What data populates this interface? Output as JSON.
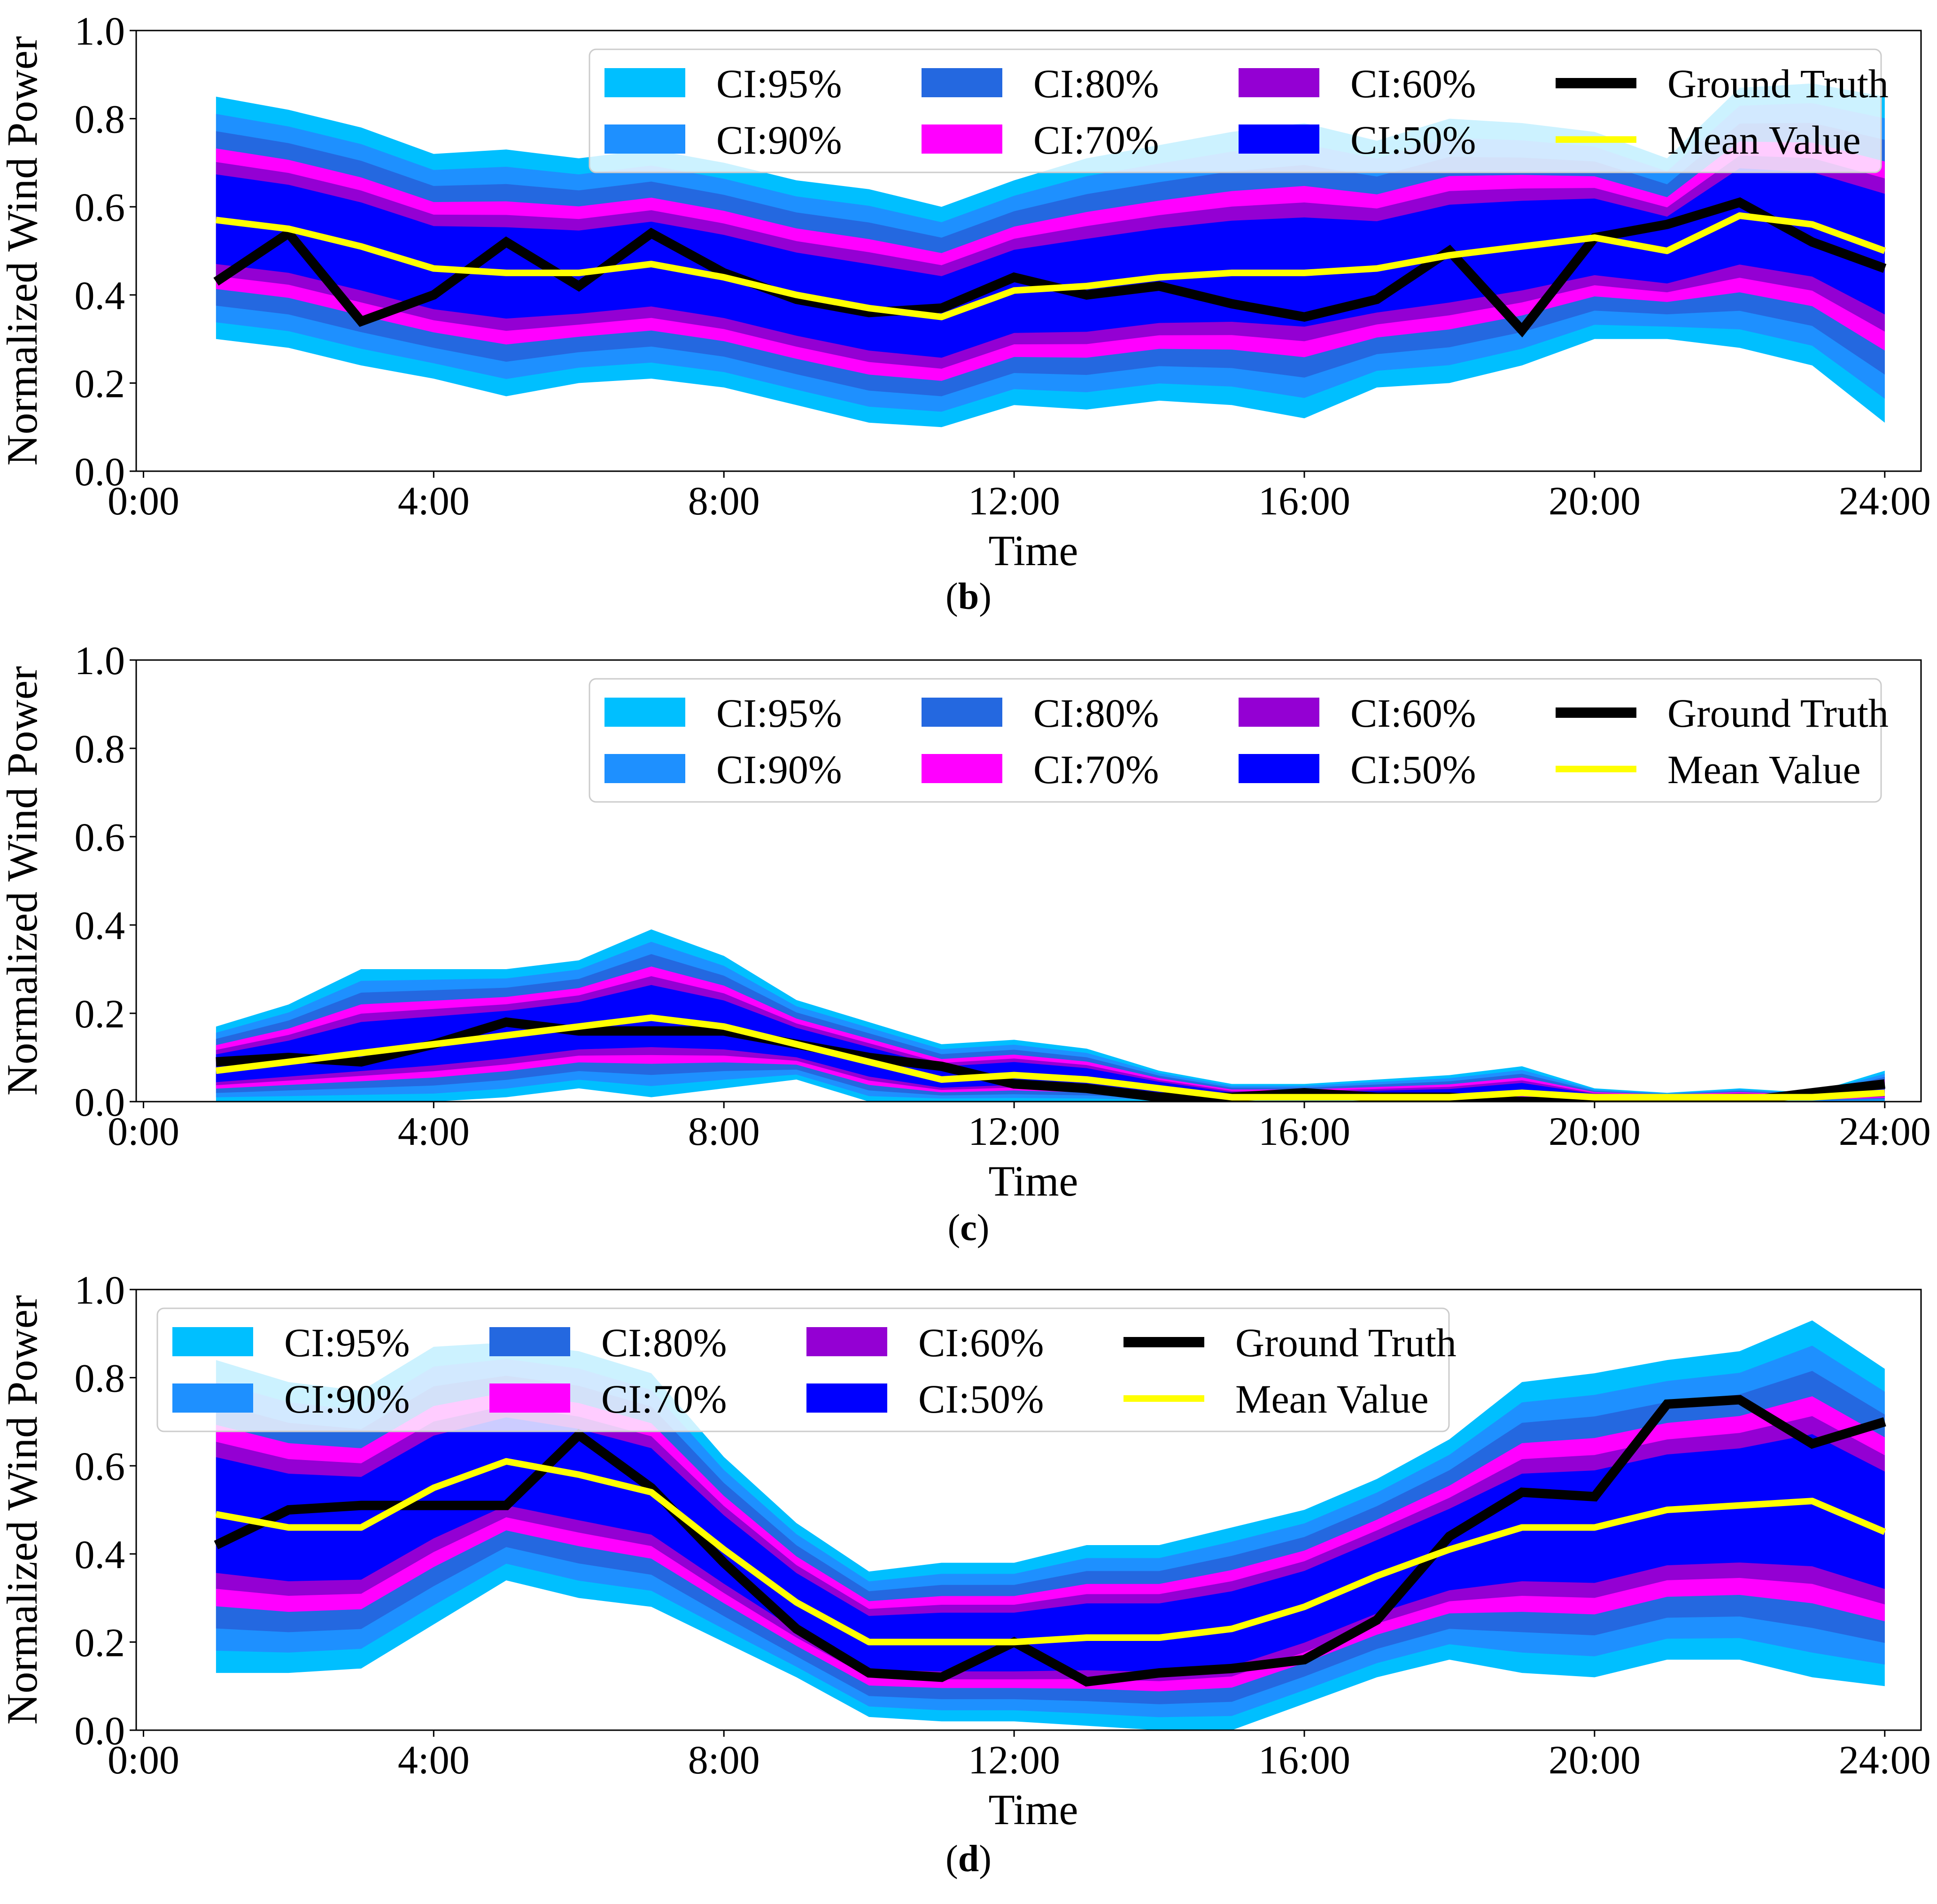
{
  "colors": {
    "ci95": "#00BFFF",
    "ci90": "#1E90FF",
    "ci80": "#2468E0",
    "ci70": "#FF00FF",
    "ci60": "#9400D3",
    "ci50": "#0000FF",
    "ground_truth": "#000000",
    "mean": "#FFFF00"
  },
  "chart_data": [
    {
      "type": "area",
      "panel_label": "b",
      "xlabel": "Time",
      "ylabel": "Normalized Wind Power",
      "ylim": [
        0,
        1
      ],
      "xlim": [
        -0.1,
        24.5
      ],
      "xticks": [
        0,
        4,
        8,
        12,
        16,
        20,
        24
      ],
      "xtick_labels": [
        "0:00",
        "4:00",
        "8:00",
        "12:00",
        "16:00",
        "20:00",
        "24:00"
      ],
      "yticks": [
        0,
        0.2,
        0.4,
        0.6,
        0.8,
        1.0
      ],
      "ytick_labels": [
        "0.0",
        "0.2",
        "0.4",
        "0.6",
        "0.8",
        "1.0"
      ],
      "legend_position": "top-right",
      "legend": [
        "CI:95%",
        "CI:90%",
        "CI:80%",
        "CI:70%",
        "CI:60%",
        "CI:50%",
        "Ground Truth",
        "Mean Value"
      ],
      "x": [
        1,
        2,
        3,
        4,
        5,
        6,
        7,
        8,
        9,
        10,
        11,
        12,
        13,
        14,
        15,
        16,
        17,
        18,
        19,
        20,
        21,
        22,
        23,
        24
      ],
      "mean": [
        0.57,
        0.55,
        0.51,
        0.46,
        0.45,
        0.45,
        0.47,
        0.44,
        0.4,
        0.37,
        0.35,
        0.41,
        0.42,
        0.44,
        0.45,
        0.45,
        0.46,
        0.49,
        0.51,
        0.53,
        0.5,
        0.58,
        0.56,
        0.5
      ],
      "ground_truth": [
        0.43,
        0.54,
        0.34,
        0.4,
        0.52,
        0.42,
        0.54,
        0.45,
        0.39,
        0.36,
        0.37,
        0.44,
        0.4,
        0.42,
        0.38,
        0.35,
        0.39,
        0.5,
        0.32,
        0.53,
        0.56,
        0.61,
        0.52,
        0.46
      ],
      "upper": [
        0.85,
        0.82,
        0.78,
        0.72,
        0.73,
        0.71,
        0.73,
        0.7,
        0.66,
        0.64,
        0.6,
        0.66,
        0.71,
        0.74,
        0.77,
        0.79,
        0.75,
        0.8,
        0.79,
        0.77,
        0.71,
        0.87,
        0.88,
        0.85
      ],
      "lower": [
        0.3,
        0.28,
        0.24,
        0.21,
        0.17,
        0.2,
        0.21,
        0.19,
        0.15,
        0.11,
        0.1,
        0.15,
        0.14,
        0.16,
        0.15,
        0.12,
        0.19,
        0.2,
        0.24,
        0.3,
        0.3,
        0.28,
        0.24,
        0.11
      ]
    },
    {
      "type": "area",
      "panel_label": "c",
      "xlabel": "Time",
      "ylabel": "Normalized Wind Power",
      "ylim": [
        0,
        1
      ],
      "xlim": [
        -0.1,
        24.5
      ],
      "xticks": [
        0,
        4,
        8,
        12,
        16,
        20,
        24
      ],
      "xtick_labels": [
        "0:00",
        "4:00",
        "8:00",
        "12:00",
        "16:00",
        "20:00",
        "24:00"
      ],
      "yticks": [
        0,
        0.2,
        0.4,
        0.6,
        0.8,
        1.0
      ],
      "ytick_labels": [
        "0.0",
        "0.2",
        "0.4",
        "0.6",
        "0.8",
        "1.0"
      ],
      "legend_position": "top-right",
      "legend": [
        "CI:95%",
        "CI:90%",
        "CI:80%",
        "CI:70%",
        "CI:60%",
        "CI:50%",
        "Ground Truth",
        "Mean Value"
      ],
      "x": [
        1,
        2,
        3,
        4,
        5,
        6,
        7,
        8,
        9,
        10,
        11,
        12,
        13,
        14,
        15,
        16,
        17,
        18,
        19,
        20,
        21,
        22,
        23,
        24
      ],
      "mean": [
        0.07,
        0.09,
        0.11,
        0.13,
        0.15,
        0.17,
        0.19,
        0.17,
        0.13,
        0.09,
        0.05,
        0.06,
        0.05,
        0.03,
        0.01,
        0.01,
        0.01,
        0.01,
        0.02,
        0.01,
        0.01,
        0.01,
        0.01,
        0.02
      ],
      "ground_truth": [
        0.09,
        0.1,
        0.09,
        0.13,
        0.18,
        0.16,
        0.16,
        0.16,
        0.13,
        0.1,
        0.08,
        0.04,
        0.03,
        0.01,
        0.01,
        0.02,
        0.01,
        0.01,
        0.0,
        0.0,
        0.0,
        0.0,
        0.02,
        0.04
      ],
      "upper": [
        0.17,
        0.22,
        0.3,
        0.3,
        0.3,
        0.32,
        0.39,
        0.33,
        0.23,
        0.18,
        0.13,
        0.14,
        0.12,
        0.07,
        0.04,
        0.04,
        0.05,
        0.06,
        0.08,
        0.03,
        0.02,
        0.03,
        0.02,
        0.07
      ],
      "lower": [
        0.0,
        0.0,
        0.0,
        0.0,
        0.01,
        0.03,
        0.01,
        0.03,
        0.05,
        0.0,
        0.0,
        0.0,
        0.0,
        0.0,
        0.0,
        0.0,
        0.0,
        0.0,
        0.0,
        0.0,
        0.0,
        0.0,
        0.0,
        0.0
      ]
    },
    {
      "type": "area",
      "panel_label": "d",
      "xlabel": "Time",
      "ylabel": "Normalized Wind Power",
      "ylim": [
        0,
        1
      ],
      "xlim": [
        -0.1,
        24.5
      ],
      "xticks": [
        0,
        4,
        8,
        12,
        16,
        20,
        24
      ],
      "xtick_labels": [
        "0:00",
        "4:00",
        "8:00",
        "12:00",
        "16:00",
        "20:00",
        "24:00"
      ],
      "yticks": [
        0,
        0.2,
        0.4,
        0.6,
        0.8,
        1.0
      ],
      "ytick_labels": [
        "0.0",
        "0.2",
        "0.4",
        "0.6",
        "0.8",
        "1.0"
      ],
      "legend_position": "top-left",
      "legend": [
        "CI:95%",
        "CI:90%",
        "CI:80%",
        "CI:70%",
        "CI:60%",
        "CI:50%",
        "Ground Truth",
        "Mean Value"
      ],
      "x": [
        1,
        2,
        3,
        4,
        5,
        6,
        7,
        8,
        9,
        10,
        11,
        12,
        13,
        14,
        15,
        16,
        17,
        18,
        19,
        20,
        21,
        22,
        23,
        24
      ],
      "mean": [
        0.49,
        0.46,
        0.46,
        0.55,
        0.61,
        0.58,
        0.54,
        0.41,
        0.29,
        0.2,
        0.2,
        0.2,
        0.21,
        0.21,
        0.23,
        0.28,
        0.35,
        0.41,
        0.46,
        0.46,
        0.5,
        0.51,
        0.52,
        0.45
      ],
      "ground_truth": [
        0.42,
        0.5,
        0.51,
        0.51,
        0.51,
        0.67,
        0.55,
        0.38,
        0.23,
        0.13,
        0.12,
        0.2,
        0.11,
        0.13,
        0.14,
        0.16,
        0.25,
        0.44,
        0.54,
        0.53,
        0.74,
        0.75,
        0.65,
        0.7
      ],
      "upper": [
        0.84,
        0.79,
        0.77,
        0.87,
        0.88,
        0.86,
        0.81,
        0.62,
        0.47,
        0.36,
        0.38,
        0.38,
        0.42,
        0.42,
        0.46,
        0.5,
        0.57,
        0.66,
        0.79,
        0.81,
        0.84,
        0.86,
        0.93,
        0.82
      ],
      "lower": [
        0.13,
        0.13,
        0.14,
        0.24,
        0.34,
        0.3,
        0.28,
        0.2,
        0.12,
        0.03,
        0.02,
        0.02,
        0.01,
        0.0,
        0.0,
        0.06,
        0.12,
        0.16,
        0.13,
        0.12,
        0.16,
        0.16,
        0.12,
        0.1
      ]
    }
  ]
}
